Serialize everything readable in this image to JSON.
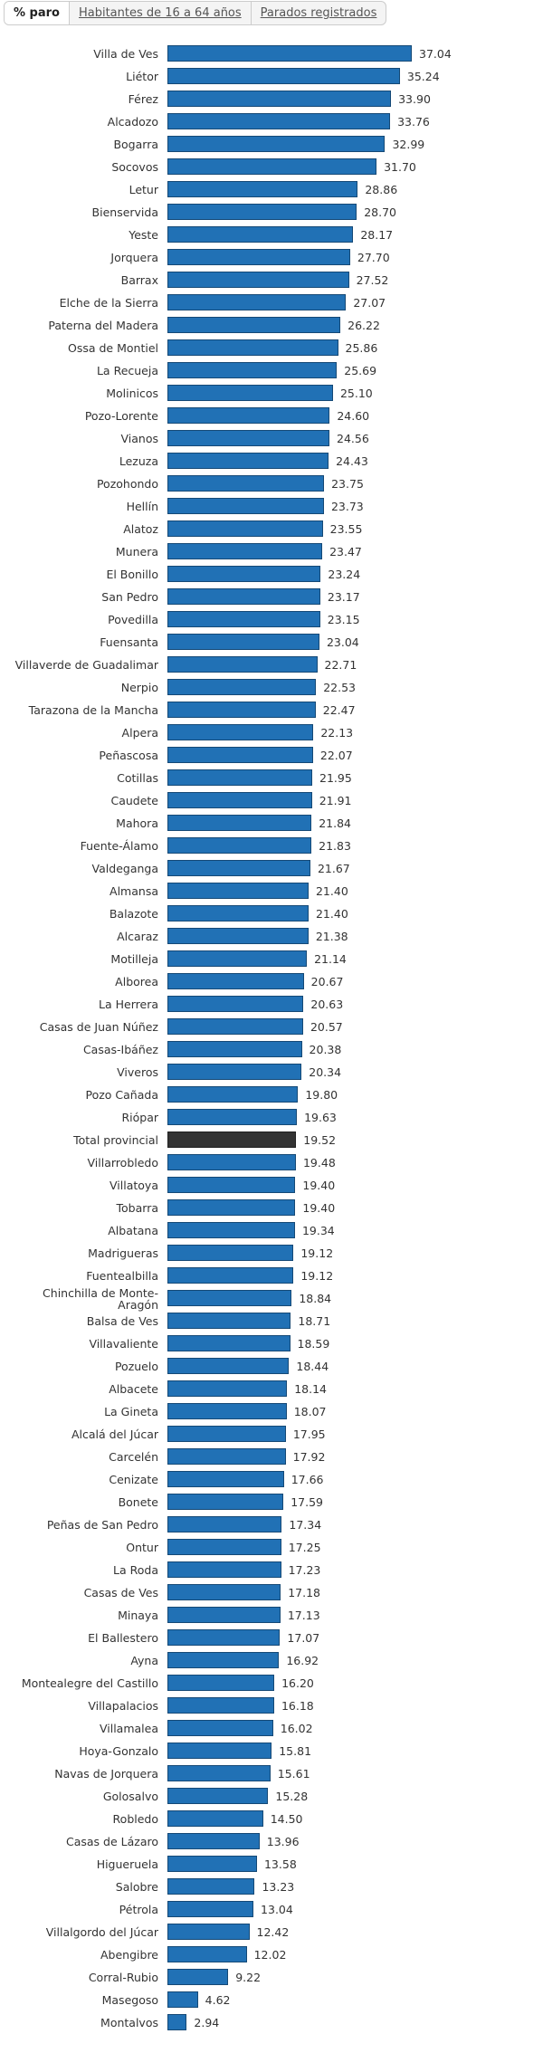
{
  "tabs": [
    "% paro",
    "Habitantes de 16 a 64 años",
    "Parados registrados"
  ],
  "chart_data": {
    "type": "bar",
    "orientation": "horizontal",
    "categories": [
      "Villa de Ves",
      "Liétor",
      "Férez",
      "Alcadozo",
      "Bogarra",
      "Socovos",
      "Letur",
      "Bienservida",
      "Yeste",
      "Jorquera",
      "Barrax",
      "Elche de la Sierra",
      "Paterna del Madera",
      "Ossa de Montiel",
      "La Recueja",
      "Molinicos",
      "Pozo-Lorente",
      "Vianos",
      "Lezuza",
      "Pozohondo",
      "Hellín",
      "Alatoz",
      "Munera",
      "El Bonillo",
      "San Pedro",
      "Povedilla",
      "Fuensanta",
      "Villaverde de Guadalimar",
      "Nerpio",
      "Tarazona de la Mancha",
      "Alpera",
      "Peñascosa",
      "Cotillas",
      "Caudete",
      "Mahora",
      "Fuente-Álamo",
      "Valdeganga",
      "Almansa",
      "Balazote",
      "Alcaraz",
      "Motilleja",
      "Alborea",
      "La Herrera",
      "Casas de Juan Núñez",
      "Casas-Ibáñez",
      "Viveros",
      "Pozo Cañada",
      "Riópar",
      "Total provincial",
      "Villarrobledo",
      "Villatoya",
      "Tobarra",
      "Albatana",
      "Madrigueras",
      "Fuentealbilla",
      "Chinchilla de Monte-Aragón",
      "Balsa de Ves",
      "Villavaliente",
      "Pozuelo",
      "Albacete",
      "La Gineta",
      "Alcalá del Júcar",
      "Carcelén",
      "Cenizate",
      "Bonete",
      "Peñas de San Pedro",
      "Ontur",
      "La Roda",
      "Casas de Ves",
      "Minaya",
      "El Ballestero",
      "Ayna",
      "Montealegre del Castillo",
      "Villapalacios",
      "Villamalea",
      "Hoya-Gonzalo",
      "Navas de Jorquera",
      "Golosalvo",
      "Robledo",
      "Casas de Lázaro",
      "Higueruela",
      "Salobre",
      "Pétrola",
      "Villalgordo del Júcar",
      "Abengibre",
      "Corral-Rubio",
      "Masegoso",
      "Montalvos"
    ],
    "values": [
      37.04,
      35.24,
      33.9,
      33.76,
      32.99,
      31.7,
      28.86,
      28.7,
      28.17,
      27.7,
      27.52,
      27.07,
      26.22,
      25.86,
      25.69,
      25.1,
      24.6,
      24.56,
      24.43,
      23.75,
      23.73,
      23.55,
      23.47,
      23.24,
      23.17,
      23.15,
      23.04,
      22.71,
      22.53,
      22.47,
      22.13,
      22.07,
      21.95,
      21.91,
      21.84,
      21.83,
      21.67,
      21.4,
      21.4,
      21.38,
      21.14,
      20.67,
      20.63,
      20.57,
      20.38,
      20.34,
      19.8,
      19.63,
      19.52,
      19.48,
      19.4,
      19.4,
      19.34,
      19.12,
      19.12,
      18.84,
      18.71,
      18.59,
      18.44,
      18.14,
      18.07,
      17.95,
      17.92,
      17.66,
      17.59,
      17.34,
      17.25,
      17.23,
      17.18,
      17.13,
      17.07,
      16.92,
      16.2,
      16.18,
      16.02,
      15.81,
      15.61,
      15.28,
      14.5,
      13.96,
      13.58,
      13.23,
      13.04,
      12.42,
      12.02,
      9.22,
      4.62,
      2.94
    ],
    "value_labels": [
      "37.04",
      "35.24",
      "33.90",
      "33.76",
      "32.99",
      "31.70",
      "28.86",
      "28.70",
      "28.17",
      "27.70",
      "27.52",
      "27.07",
      "26.22",
      "25.86",
      "25.69",
      "25.10",
      "24.60",
      "24.56",
      "24.43",
      "23.75",
      "23.73",
      "23.55",
      "23.47",
      "23.24",
      "23.17",
      "23.15",
      "23.04",
      "22.71",
      "22.53",
      "22.47",
      "22.13",
      "22.07",
      "21.95",
      "21.91",
      "21.84",
      "21.83",
      "21.67",
      "21.40",
      "21.40",
      "21.38",
      "21.14",
      "20.67",
      "20.63",
      "20.57",
      "20.38",
      "20.34",
      "19.80",
      "19.63",
      "19.52",
      "19.48",
      "19.40",
      "19.40",
      "19.34",
      "19.12",
      "19.12",
      "18.84",
      "18.71",
      "18.59",
      "18.44",
      "18.14",
      "18.07",
      "17.95",
      "17.92",
      "17.66",
      "17.59",
      "17.34",
      "17.25",
      "17.23",
      "17.18",
      "17.13",
      "17.07",
      "16.92",
      "16.20",
      "16.18",
      "16.02",
      "15.81",
      "15.61",
      "15.28",
      "14.50",
      "13.96",
      "13.58",
      "13.23",
      "13.04",
      "12.42",
      "12.02",
      "9.22",
      "4.62",
      "2.94"
    ],
    "colors": [
      "#2171b5",
      "#2171b5",
      "#2171b5",
      "#2171b5",
      "#2171b5",
      "#2171b5",
      "#2171b5",
      "#2171b5",
      "#2171b5",
      "#2171b5",
      "#2171b5",
      "#2171b5",
      "#2171b5",
      "#2171b5",
      "#2171b5",
      "#2171b5",
      "#2171b5",
      "#2171b5",
      "#2171b5",
      "#2171b5",
      "#2171b5",
      "#2171b5",
      "#2171b5",
      "#2171b5",
      "#2171b5",
      "#2171b5",
      "#2171b5",
      "#2171b5",
      "#2171b5",
      "#2171b5",
      "#2171b5",
      "#2171b5",
      "#2171b5",
      "#2171b5",
      "#2171b5",
      "#2171b5",
      "#2171b5",
      "#2171b5",
      "#2171b5",
      "#2171b5",
      "#2171b5",
      "#2171b5",
      "#2171b5",
      "#2171b5",
      "#2171b5",
      "#2171b5",
      "#2171b5",
      "#2171b5",
      "#333333",
      "#2171b5",
      "#2171b5",
      "#2171b5",
      "#2171b5",
      "#2171b5",
      "#2171b5",
      "#2171b5",
      "#2171b5",
      "#2171b5",
      "#2171b5",
      "#2171b5",
      "#2171b5",
      "#2171b5",
      "#2171b5",
      "#2171b5",
      "#2171b5",
      "#2171b5",
      "#2171b5",
      "#2171b5",
      "#2171b5",
      "#2171b5",
      "#2171b5",
      "#2171b5",
      "#2171b5",
      "#2171b5",
      "#2171b5",
      "#2171b5",
      "#2171b5",
      "#2171b5",
      "#2171b5",
      "#2171b5",
      "#2171b5",
      "#2171b5",
      "#2171b5",
      "#2171b5",
      "#2171b5",
      "#2171b5",
      "#2171b5",
      "#2171b5"
    ]
  }
}
